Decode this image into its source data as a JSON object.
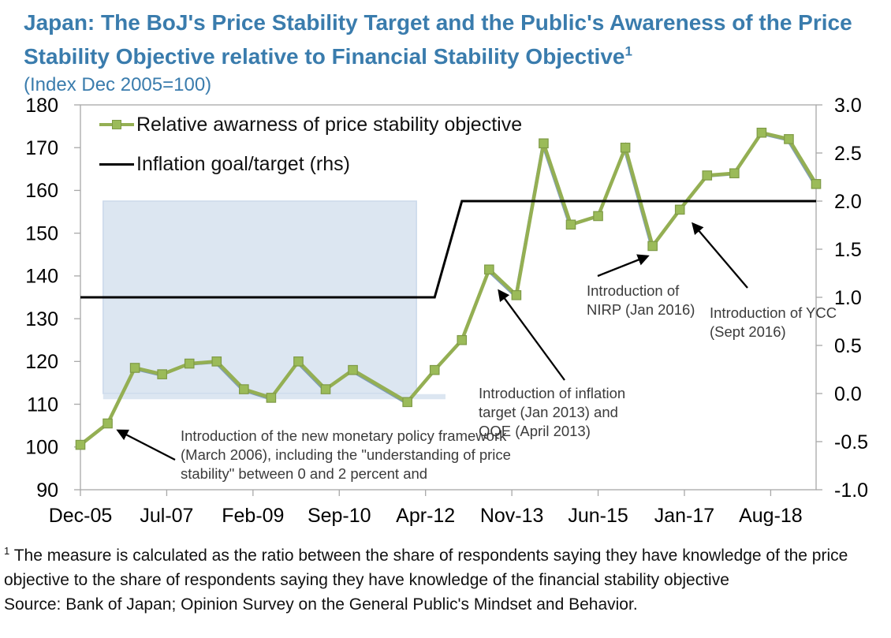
{
  "title": {
    "text": "Japan: The BoJ's Price Stability Target and the Public's Awareness of the Price Stability Objective relative to Financial Stability Objective",
    "superscript": "1",
    "subtitle": "(Index Dec 2005=100)"
  },
  "legend": {
    "items": [
      {
        "label": "Relative awarness of price stability objective"
      },
      {
        "label": "Inflation goal/target (rhs)"
      }
    ]
  },
  "annotations": [
    {
      "text": "Introduction of the new monetary policy framework (March 2006), including the \"understanding of price stability\" between 0 and 2 percent and"
    },
    {
      "text": "Introduction of inflation target (Jan 2013) and QQE (April 2013)"
    },
    {
      "text": "Introduction of NIRP (Jan 2016)"
    },
    {
      "text": "Introduction of YCC (Sept 2016)"
    }
  ],
  "footnote": {
    "marker": "1",
    "note": " The measure is calculated as the ratio between the share of respondents saying they have knowledge of the price objective to the share of respondents saying they have knowledge of the financial stability objective",
    "source": "Source: Bank of Japan; Opinion Survey on the General Public's Mindset and Behavior."
  },
  "chart_data": {
    "type": "line",
    "title": "Japan: The BoJ's Price Stability Target and the Public's Awareness of the Price Stability Objective relative to Financial Stability Objective",
    "subtitle": "(Index Dec 2005=100)",
    "left_axis": {
      "min": 90,
      "max": 180,
      "ticks": [
        180,
        170,
        160,
        150,
        140,
        130,
        120,
        110,
        100,
        90
      ]
    },
    "right_axis": {
      "min": -1.0,
      "max": 3.0,
      "ticks": [
        3.0,
        2.5,
        2.0,
        1.5,
        1.0,
        0.5,
        0.0,
        -0.5,
        -1.0
      ]
    },
    "x_axis": {
      "start": "Dec-05",
      "end": "Jun-19",
      "tick_labels": [
        "Dec-05",
        "Jul-07",
        "Feb-09",
        "Sep-10",
        "Apr-12",
        "Nov-13",
        "Jun-15",
        "Jan-17",
        "Aug-18"
      ]
    },
    "grid": false,
    "legend_position": "top-left-inside",
    "shaded_band": {
      "start_date": "May-06",
      "end_date": "Feb-12",
      "y_from_rhs": 0.0,
      "y_to_rhs": 2.0,
      "color": "#DCE6F1",
      "edge_color": "#CBD9EB"
    },
    "series": [
      {
        "name": "Relative awarness of price stability objective",
        "axis": "left",
        "marker": "square",
        "color": "#94AF53",
        "marker_fill": "#9BBB59",
        "marker_edge": "#7E9A46",
        "shadow_color": "#6C8EA9",
        "points": [
          {
            "date": "Dec-05",
            "value": 100.5
          },
          {
            "date": "Jun-06",
            "value": 105.5
          },
          {
            "date": "Dec-06",
            "value": 118.5
          },
          {
            "date": "Jun-07",
            "value": 117
          },
          {
            "date": "Dec-07",
            "value": 119.5
          },
          {
            "date": "Jun-08",
            "value": 120
          },
          {
            "date": "Dec-08",
            "value": 113.5
          },
          {
            "date": "Jun-09",
            "value": 111.5
          },
          {
            "date": "Dec-09",
            "value": 120
          },
          {
            "date": "Jun-10",
            "value": 113.5
          },
          {
            "date": "Dec-10",
            "value": 118
          },
          {
            "date": "Dec-11",
            "value": 110.5
          },
          {
            "date": "Jun-12",
            "value": 118
          },
          {
            "date": "Dec-12",
            "value": 125
          },
          {
            "date": "Jun-13",
            "value": 141.5
          },
          {
            "date": "Dec-13",
            "value": 135.5
          },
          {
            "date": "Jun-14",
            "value": 171
          },
          {
            "date": "Dec-14",
            "value": 152
          },
          {
            "date": "Jun-15",
            "value": 154
          },
          {
            "date": "Dec-15",
            "value": 170
          },
          {
            "date": "Jun-16",
            "value": 147
          },
          {
            "date": "Dec-16",
            "value": 155.5
          },
          {
            "date": "Jun-17",
            "value": 163.5
          },
          {
            "date": "Dec-17",
            "value": 164
          },
          {
            "date": "Jun-18",
            "value": 173.5
          },
          {
            "date": "Dec-18",
            "value": 172
          },
          {
            "date": "Jun-19",
            "value": 161.5
          }
        ]
      },
      {
        "name": "Inflation goal/target (rhs)",
        "axis": "right",
        "marker": "none",
        "color": "#000000",
        "points": [
          {
            "date": "Dec-05",
            "value": 1.0
          },
          {
            "date": "Jun-12",
            "value": 1.0
          },
          {
            "date": "Dec-12",
            "value": 2.0
          },
          {
            "date": "Jun-19",
            "value": 2.0
          }
        ]
      }
    ]
  }
}
